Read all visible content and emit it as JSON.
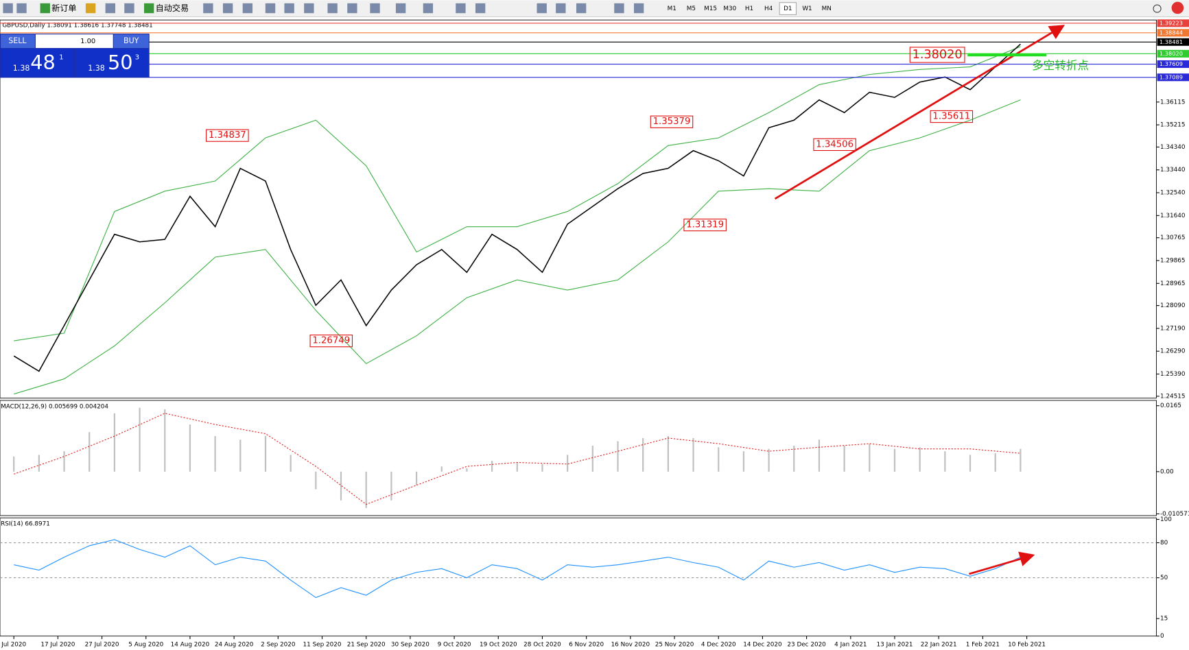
{
  "toolbar": {
    "new_order": "新订单",
    "auto_trade": "自动交易",
    "timeframes": [
      "M1",
      "M5",
      "M15",
      "M30",
      "H1",
      "H4",
      "D1",
      "W1",
      "MN"
    ]
  },
  "trade_panel": {
    "sell": "SELL",
    "buy": "BUY",
    "lots": "1.00",
    "bid_big": "1.38",
    "bid_pips": "48",
    "bid_frac": "1",
    "ask_big": "1.38",
    "ask_pips": "50",
    "ask_frac": "3"
  },
  "chart_data": [
    {
      "type": "line",
      "title": "GBPUSD,Daily  1.38091 1.38616 1.37748 1.38481",
      "x": [
        0,
        4,
        8,
        12,
        16,
        20,
        24,
        28,
        32,
        36,
        40,
        44,
        48,
        52,
        56,
        60,
        64,
        68,
        72,
        76,
        80,
        84,
        88,
        92,
        96,
        100,
        104,
        108,
        112,
        116,
        120,
        124,
        128,
        132,
        136,
        140,
        144,
        148,
        152,
        156,
        160
      ],
      "series": [
        {
          "color": "#000000",
          "values": [
            1.261,
            1.255,
            1.273,
            1.291,
            1.309,
            1.306,
            1.307,
            1.324,
            1.312,
            1.335,
            1.33,
            1.303,
            1.281,
            1.291,
            1.273,
            1.287,
            1.297,
            1.303,
            1.294,
            1.309,
            1.303,
            1.294,
            1.313,
            1.32,
            1.327,
            1.333,
            1.335,
            1.342,
            1.338,
            1.332,
            1.351,
            1.354,
            1.362,
            1.357,
            1.365,
            1.363,
            1.369,
            1.371,
            1.366,
            1.375,
            1.384
          ]
        }
      ],
      "bands_x": [
        0,
        8,
        16,
        24,
        32,
        40,
        48,
        56,
        64,
        72,
        80,
        88,
        96,
        104,
        112,
        120,
        128,
        136,
        144,
        152,
        160
      ],
      "bands": [
        {
          "color": "#3cb043",
          "values": [
            1.267,
            1.27,
            1.318,
            1.326,
            1.33,
            1.347,
            1.354,
            1.336,
            1.302,
            1.312,
            1.312,
            1.318,
            1.329,
            1.344,
            1.347,
            1.357,
            1.368,
            1.372,
            1.374,
            1.375,
            1.383
          ]
        },
        {
          "color": "#3cb043",
          "values": [
            1.246,
            1.252,
            1.265,
            1.282,
            1.3,
            1.303,
            1.279,
            1.258,
            1.269,
            1.284,
            1.291,
            1.287,
            1.291,
            1.306,
            1.326,
            1.327,
            1.326,
            1.342,
            1.347,
            1.354,
            1.362
          ]
        }
      ],
      "xlim": [
        -2.2,
        181.6
      ],
      "ylim": [
        1.2444,
        1.3929
      ],
      "yticks": [
        1.36115,
        1.35215,
        {
          "value": 1.3434,
          "label": "1.34340"
        },
        {
          "value": 1.3344,
          "label": "1.33440"
        },
        {
          "value": 1.3254,
          "label": "1.32540"
        },
        {
          "value": 1.3164,
          "label": "1.31640"
        },
        1.30765,
        1.29865,
        1.28965,
        {
          "value": 1.2809,
          "label": "1.28090"
        },
        {
          "value": 1.2719,
          "label": "1.27190"
        },
        {
          "value": 1.2629,
          "label": "1.26290"
        },
        {
          "value": 1.2539,
          "label": "1.25390"
        },
        1.24515
      ],
      "levels": [
        {
          "value": 1.39223,
          "label": "1.39223",
          "color": "#e8413b"
        },
        {
          "value": 1.38844,
          "label": "1.38844",
          "color": "#f07830"
        },
        {
          "value": 1.38481,
          "label": "1.38481",
          "color": "#000000"
        },
        {
          "value": 1.3802,
          "label": "1.38020",
          "color": "#2ecc2e"
        },
        {
          "value": 1.37609,
          "label": "1.37609",
          "color": "#2a2ad8"
        },
        {
          "value": 1.37089,
          "label": "1.37089",
          "color": "#2a2ad8"
        }
      ],
      "annotations": [
        {
          "text": "1.34837"
        },
        {
          "text": "1.26749"
        },
        {
          "text": "1.35379"
        },
        {
          "text": "1.31319"
        },
        {
          "text": "1.34506"
        },
        {
          "text": "1.35611"
        },
        {
          "text": "1.38020"
        },
        {
          "text": "多空转折点"
        }
      ],
      "xticks": [
        {
          "value": 0,
          "label": "Jul 2020"
        },
        {
          "value": 7,
          "label": "17 Jul 2020"
        },
        {
          "value": 14,
          "label": "27 Jul 2020"
        },
        {
          "value": 21,
          "label": "5 Aug 2020"
        },
        {
          "value": 28,
          "label": "14 Aug 2020"
        },
        {
          "value": 35,
          "label": "24 Aug 2020"
        },
        {
          "value": 42,
          "label": "2 Sep 2020"
        },
        {
          "value": 49,
          "label": "11 Sep 2020"
        },
        {
          "value": 56,
          "label": "21 Sep 2020"
        },
        {
          "value": 63,
          "label": "30 Sep 2020"
        },
        {
          "value": 70,
          "label": "9 Oct 2020"
        },
        {
          "value": 77,
          "label": "19 Oct 2020"
        },
        {
          "value": 84,
          "label": "28 Oct 2020"
        },
        {
          "value": 91,
          "label": "6 Nov 2020"
        },
        {
          "value": 98,
          "label": "16 Nov 2020"
        },
        {
          "value": 105,
          "label": "25 Nov 2020"
        },
        {
          "value": 112,
          "label": "4 Dec 2020"
        },
        {
          "value": 119,
          "label": "14 Dec 2020"
        },
        {
          "value": 126,
          "label": "23 Dec 2020"
        },
        {
          "value": 133,
          "label": "4 Jan 2021"
        },
        {
          "value": 140,
          "label": "13 Jan 2021"
        },
        {
          "value": 147,
          "label": "22 Jan 2021"
        },
        {
          "value": 154,
          "label": "1 Feb 2021"
        },
        {
          "value": 161,
          "label": "10 Feb 2021"
        }
      ]
    },
    {
      "type": "macd",
      "title": "MACD(12,26,9) 0.005699 0.004204",
      "x": [
        0,
        4,
        8,
        12,
        16,
        20,
        24,
        28,
        32,
        36,
        40,
        44,
        48,
        52,
        56,
        60,
        64,
        68,
        72,
        76,
        80,
        84,
        88,
        92,
        96,
        100,
        104,
        108,
        112,
        116,
        120,
        124,
        128,
        132,
        136,
        140,
        144,
        148,
        152,
        156,
        160
      ],
      "values": [
        0.0038,
        0.0042,
        0.0051,
        0.0099,
        0.0146,
        0.016,
        0.0156,
        0.0118,
        0.0089,
        0.008,
        0.0089,
        0.0042,
        -0.0044,
        -0.0072,
        -0.0091,
        -0.0072,
        -0.0034,
        0.0013,
        0.0008,
        0.0027,
        0.0023,
        0.0019,
        0.0042,
        0.0065,
        0.0076,
        0.0084,
        0.0089,
        0.0084,
        0.0061,
        0.0051,
        0.0057,
        0.0065,
        0.008,
        0.0065,
        0.007,
        0.0057,
        0.0061,
        0.0051,
        0.0042,
        0.0046,
        0.0057
      ],
      "color": "#c0c0c0",
      "signal_x": [
        0,
        8,
        16,
        24,
        32,
        40,
        48,
        56,
        64,
        72,
        80,
        88,
        96,
        104,
        112,
        120,
        128,
        136,
        144,
        152,
        160
      ],
      "signal": [
        -0.0006,
        0.0038,
        0.0089,
        0.0146,
        0.0118,
        0.0095,
        0.0013,
        -0.0082,
        -0.0034,
        0.0013,
        0.0023,
        0.0019,
        0.0051,
        0.0084,
        0.007,
        0.0051,
        0.0061,
        0.007,
        0.0057,
        0.0057,
        0.0046
      ],
      "signal_color": "#e02020",
      "ylim": [
        -0.011,
        0.01745
      ],
      "yticks": [
        0.0165,
        {
          "value": 0,
          "label": "0.00"
        },
        -0.010571
      ]
    },
    {
      "type": "rsi",
      "title": "RSI(14) 66.8971",
      "x": [
        0,
        4,
        8,
        12,
        16,
        20,
        24,
        28,
        32,
        36,
        40,
        44,
        48,
        52,
        56,
        60,
        64,
        68,
        72,
        76,
        80,
        84,
        88,
        92,
        96,
        100,
        104,
        108,
        112,
        116,
        120,
        124,
        128,
        132,
        136,
        140,
        144,
        148,
        152,
        156,
        160
      ],
      "values": [
        61.1,
        56.5,
        67.6,
        77.4,
        82.6,
        74.2,
        67.6,
        77.4,
        61.1,
        67.6,
        64.3,
        48,
        33,
        41.5,
        35,
        48,
        54.6,
        57.8,
        50,
        61.1,
        57.8,
        48,
        61.1,
        59,
        61.1,
        64.3,
        67.6,
        63,
        59,
        48,
        64.3,
        59,
        63,
        56.5,
        61.1,
        54.6,
        59,
        57.8,
        51.3,
        57.8,
        67.6
      ],
      "color": "#1e90ff",
      "ylim": [
        0,
        100
      ],
      "yticks": [
        100,
        80,
        50,
        15,
        0
      ],
      "dashed_levels": [
        80,
        50
      ]
    }
  ]
}
